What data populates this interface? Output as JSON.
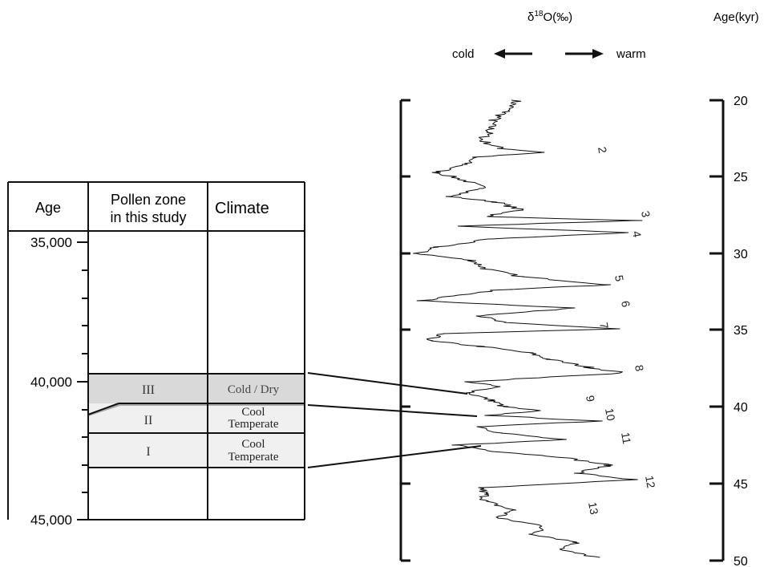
{
  "header": {
    "isotope_prefix": "δ",
    "isotope_sup": "18",
    "isotope_suffix": "O(‰)",
    "age_label": "Age(kyr)",
    "cold_label": "cold",
    "warm_label": "warm"
  },
  "table": {
    "col_age": "Age",
    "col_pollen_line1": "Pollen zone",
    "col_pollen_line2": "in this study",
    "col_climate": "Climate",
    "age_ticks": [
      "35,000",
      "40,000",
      "45,000"
    ],
    "zones": [
      {
        "zone": "III",
        "climate_line1": "Cold / Dry",
        "climate_line2": ""
      },
      {
        "zone": "II",
        "climate_line1": "Cool",
        "climate_line2": "Temperate"
      },
      {
        "zone": "I",
        "climate_line1": "Cool",
        "climate_line2": "Temperate"
      }
    ]
  },
  "record": {
    "age_ticks": [
      "20",
      "25",
      "30",
      "35",
      "40",
      "45",
      "50"
    ],
    "interstadials": [
      "2",
      "3",
      "4",
      "5",
      "6",
      "7",
      "8",
      "9",
      "10",
      "11",
      "12",
      "13"
    ]
  },
  "colors": {
    "zone_III_fill": "#d9d9d9",
    "zone_II_I_fill": "#f0f0f0",
    "line": "#111111"
  }
}
